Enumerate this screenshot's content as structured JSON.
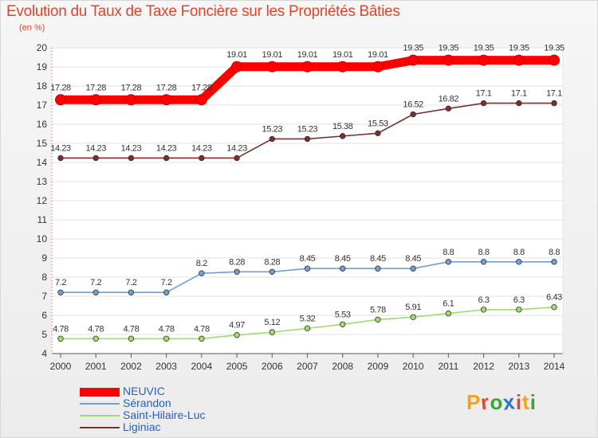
{
  "header": {
    "title": "Evolution du Taux de Taxe Foncière sur les Propriétés Bâties",
    "subtitle": "(en %)"
  },
  "brand": {
    "text": "Proxiti",
    "colors": [
      "#f4a21c",
      "#e8452c",
      "#36a636",
      "#2b73c6",
      "#e8452c",
      "#f4a21c",
      "#36a636"
    ]
  },
  "chart_data": {
    "type": "line",
    "title": "Evolution du Taux de Taxe Foncière sur les Propriétés Bâties",
    "ylabel": "(en %)",
    "xlabel": "",
    "x": [
      2000,
      2001,
      2002,
      2003,
      2004,
      2005,
      2006,
      2007,
      2008,
      2009,
      2010,
      2011,
      2012,
      2013,
      2014
    ],
    "ylim": [
      4,
      20
    ],
    "yticks": [
      4,
      5,
      6,
      7,
      8,
      9,
      10,
      11,
      12,
      13,
      14,
      15,
      16,
      17,
      18,
      19,
      20
    ],
    "grid": "horizontal",
    "legend_position": "bottom-left",
    "series": [
      {
        "name": "NEUVIC",
        "color": "#ff0000",
        "emphasis": "thick",
        "values": [
          17.28,
          17.28,
          17.28,
          17.28,
          17.28,
          19.01,
          19.01,
          19.01,
          19.01,
          19.01,
          19.35,
          19.35,
          19.35,
          19.35,
          19.35
        ],
        "labels": [
          "17.28",
          "17.28",
          "17.28",
          "17.28",
          "17.28",
          "19.01",
          "19.01",
          "19.01",
          "19.01",
          "19.01",
          "19.35",
          "19.35",
          "19.35",
          "19.35",
          "19.35"
        ]
      },
      {
        "name": "Sérandon",
        "color": "#6fa0cf",
        "emphasis": "normal",
        "values": [
          7.2,
          7.2,
          7.2,
          7.2,
          8.2,
          8.28,
          8.28,
          8.45,
          8.45,
          8.45,
          8.45,
          8.8,
          8.8,
          8.8,
          8.8
        ],
        "labels": [
          "7.2",
          "7.2",
          "7.2",
          "7.2",
          "8.2",
          "8.28",
          "8.28",
          "8.45",
          "8.45",
          "8.45",
          "8.45",
          "8.8",
          "8.8",
          "8.8",
          "8.8"
        ]
      },
      {
        "name": "Saint-Hilaire-Luc",
        "color": "#9fdc6e",
        "emphasis": "normal",
        "values": [
          4.78,
          4.78,
          4.78,
          4.78,
          4.78,
          4.97,
          5.12,
          5.32,
          5.53,
          5.78,
          5.91,
          6.1,
          6.3,
          6.3,
          6.43
        ],
        "labels": [
          "4.78",
          "4.78",
          "4.78",
          "4.78",
          "4.78",
          "4.97",
          "5.12",
          "5.32",
          "5.53",
          "5.78",
          "5.91",
          "6.1",
          "6.3",
          "6.3",
          "6.43"
        ]
      },
      {
        "name": "Liginiac",
        "color": "#7a2e2e",
        "emphasis": "normal",
        "values": [
          14.23,
          14.23,
          14.23,
          14.23,
          14.23,
          14.23,
          15.23,
          15.23,
          15.38,
          15.53,
          16.52,
          16.82,
          17.1,
          17.1,
          17.1
        ],
        "labels": [
          "14.23",
          "14.23",
          "14.23",
          "14.23",
          "14.23",
          "14.23",
          "15.23",
          "15.23",
          "15.38",
          "15.53",
          "16.52",
          "16.82",
          "17.1",
          "17.1",
          "17.1"
        ]
      }
    ]
  }
}
